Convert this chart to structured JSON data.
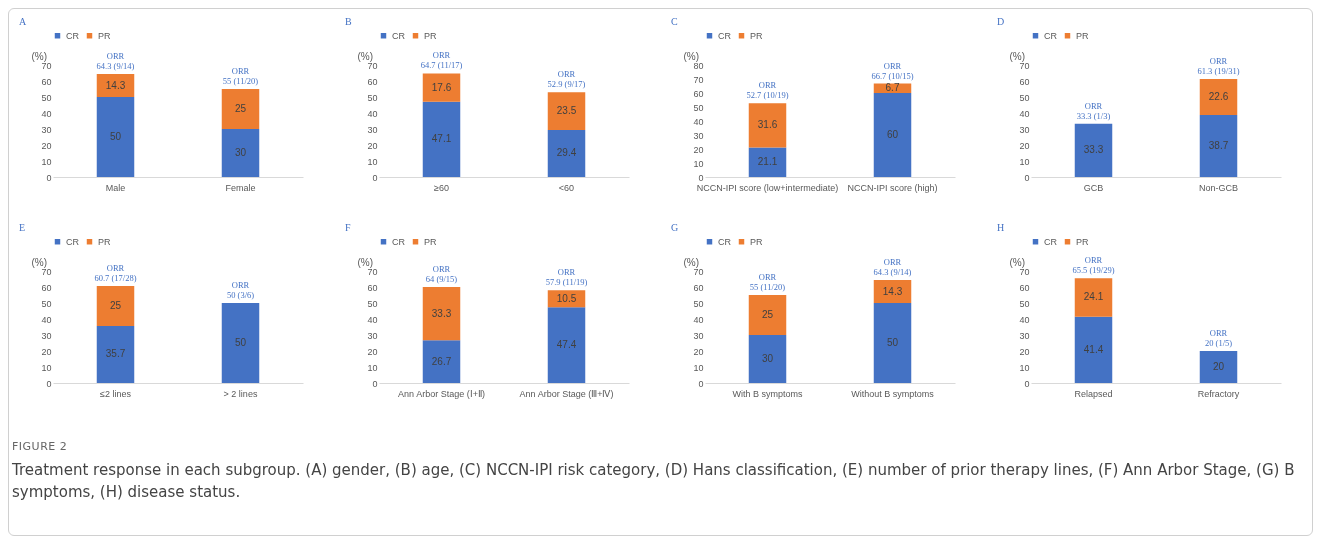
{
  "chart_data": [
    {
      "type": "bar",
      "title": "A",
      "ylabel": "(%)",
      "categories": [
        "Male",
        "Female"
      ],
      "stacked": true,
      "legend": "top",
      "data_labels": true,
      "ylim": [
        0,
        70
      ],
      "yticks": [
        0,
        10,
        20,
        30,
        40,
        50,
        60,
        70
      ],
      "series": [
        {
          "name": "CR",
          "color": "#4472c4",
          "values": [
            50,
            30
          ]
        },
        {
          "name": "PR",
          "color": "#ed7d31",
          "values": [
            14.3,
            25
          ]
        }
      ],
      "annotations": [
        {
          "text": "ORR\n64.3 (9/14)",
          "x": "Male",
          "y": 64.3
        },
        {
          "text": "ORR\n55 (11/20)",
          "x": "Female",
          "y": 55
        },
        "FIGURE 2",
        "Treatment response in each subgroup. (A) gender, (B) age, (C) NCCN-IPI risk category, (D) Hans classification, (E) number of prior therapy lines, (F) Ann Arbor Stage, (G) B symptoms, (H) disease status."
      ]
    },
    {
      "type": "bar",
      "title": "B",
      "ylabel": "(%)",
      "categories": [
        "≥60",
        "<60"
      ],
      "stacked": true,
      "legend": "top",
      "data_labels": true,
      "ylim": [
        0,
        70
      ],
      "yticks": [
        0,
        10,
        20,
        30,
        40,
        50,
        60,
        70
      ],
      "series": [
        {
          "name": "CR",
          "color": "#4472c4",
          "values": [
            47.1,
            29.4
          ]
        },
        {
          "name": "PR",
          "color": "#ed7d31",
          "values": [
            17.6,
            23.5
          ]
        }
      ],
      "annotations": [
        {
          "text": "ORR\n64.7 (11/17)",
          "x": "≥60",
          "y": 64.7
        },
        {
          "text": "ORR\n52.9 (9/17)",
          "x": "<60",
          "y": 52.9
        }
      ]
    },
    {
      "type": "bar",
      "title": "C",
      "ylabel": "(%)",
      "categories": [
        "NCCN-IPI score (low+intermediate)",
        "NCCN-IPI score (high)"
      ],
      "stacked": true,
      "legend": "top",
      "data_labels": true,
      "ylim": [
        0,
        80
      ],
      "yticks": [
        0,
        10,
        20,
        30,
        40,
        50,
        60,
        70,
        80
      ],
      "series": [
        {
          "name": "CR",
          "color": "#4472c4",
          "values": [
            21.1,
            60
          ]
        },
        {
          "name": "PR",
          "color": "#ed7d31",
          "values": [
            31.6,
            6.7
          ]
        }
      ],
      "annotations": [
        {
          "text": "ORR\n52.7 (10/19)",
          "x": "NCCN-IPI score (low+intermediate)",
          "y": 52.7
        },
        {
          "text": "ORR\n66.7 (10/15)",
          "x": "NCCN-IPI score (high)",
          "y": 66.7
        }
      ]
    },
    {
      "type": "bar",
      "title": "D",
      "ylabel": "(%)",
      "categories": [
        "GCB",
        "Non-GCB"
      ],
      "stacked": true,
      "legend": "top",
      "data_labels": true,
      "ylim": [
        0,
        70
      ],
      "yticks": [
        0,
        10,
        20,
        30,
        40,
        50,
        60,
        70
      ],
      "series": [
        {
          "name": "CR",
          "color": "#4472c4",
          "values": [
            33.3,
            38.7
          ]
        },
        {
          "name": "PR",
          "color": "#ed7d31",
          "values": [
            null,
            22.6
          ]
        }
      ],
      "annotations": [
        {
          "text": "ORR\n33.3 (1/3)",
          "x": "GCB",
          "y": 33.3
        },
        {
          "text": "ORR\n61.3 (19/31)",
          "x": "Non-GCB",
          "y": 61.3
        }
      ]
    },
    {
      "type": "bar",
      "title": "E",
      "ylabel": "(%)",
      "categories": [
        "≤2 lines",
        "> 2 lines"
      ],
      "stacked": true,
      "legend": "top",
      "data_labels": true,
      "ylim": [
        0,
        70
      ],
      "yticks": [
        0,
        10,
        20,
        30,
        40,
        50,
        60,
        70
      ],
      "series": [
        {
          "name": "CR",
          "color": "#4472c4",
          "values": [
            35.7,
            50
          ]
        },
        {
          "name": "PR",
          "color": "#ed7d31",
          "values": [
            25,
            null
          ]
        }
      ],
      "annotations": [
        {
          "text": "ORR\n60.7 (17/28)",
          "x": "≤2 lines",
          "y": 60.7
        },
        {
          "text": "ORR\n50 (3/6)",
          "x": "> 2 lines",
          "y": 50
        }
      ]
    },
    {
      "type": "bar",
      "title": "F",
      "ylabel": "(%)",
      "categories": [
        "Ann Arbor Stage (Ⅰ+Ⅱ)",
        "Ann Arbor Stage (Ⅲ+Ⅳ)"
      ],
      "stacked": true,
      "legend": "top",
      "data_labels": true,
      "ylim": [
        0,
        70
      ],
      "yticks": [
        0,
        10,
        20,
        30,
        40,
        50,
        60,
        70
      ],
      "series": [
        {
          "name": "CR",
          "color": "#4472c4",
          "values": [
            26.7,
            47.4
          ]
        },
        {
          "name": "PR",
          "color": "#ed7d31",
          "values": [
            33.3,
            10.5
          ]
        }
      ],
      "annotations": [
        {
          "text": "ORR\n64 (9/15)",
          "x": "Ann Arbor Stage (Ⅰ+Ⅱ)",
          "y": 60
        },
        {
          "text": "ORR\n57.9 (11/19)",
          "x": "Ann Arbor Stage (Ⅲ+Ⅳ)",
          "y": 57.9
        }
      ]
    },
    {
      "type": "bar",
      "title": "G",
      "ylabel": "(%)",
      "categories": [
        "With B symptoms",
        "Without B symptoms"
      ],
      "stacked": true,
      "legend": "top",
      "data_labels": true,
      "ylim": [
        0,
        70
      ],
      "yticks": [
        0,
        10,
        20,
        30,
        40,
        50,
        60,
        70
      ],
      "series": [
        {
          "name": "CR",
          "color": "#4472c4",
          "values": [
            30,
            50
          ]
        },
        {
          "name": "PR",
          "color": "#ed7d31",
          "values": [
            25,
            14.3
          ]
        }
      ],
      "annotations": [
        {
          "text": "ORR\n55 (11/20)",
          "x": "With B symptoms",
          "y": 55
        },
        {
          "text": "ORR\n64.3 (9/14)",
          "x": "Without B symptoms",
          "y": 64.3
        }
      ]
    },
    {
      "type": "bar",
      "title": "H",
      "ylabel": "(%)",
      "categories": [
        "Relapsed",
        "Refractory"
      ],
      "stacked": true,
      "legend": "top",
      "data_labels": true,
      "ylim": [
        0,
        70
      ],
      "yticks": [
        0,
        10,
        20,
        30,
        40,
        50,
        60,
        70
      ],
      "series": [
        {
          "name": "CR",
          "color": "#4472c4",
          "values": [
            41.4,
            20
          ]
        },
        {
          "name": "PR",
          "color": "#ed7d31",
          "values": [
            24.1,
            null
          ]
        }
      ],
      "annotations": [
        {
          "text": "ORR\n65.5 (19/29)",
          "x": "Relapsed",
          "y": 65.5
        },
        {
          "text": "ORR\n20 (1/5)",
          "x": "Refractory",
          "y": 20
        }
      ]
    }
  ]
}
